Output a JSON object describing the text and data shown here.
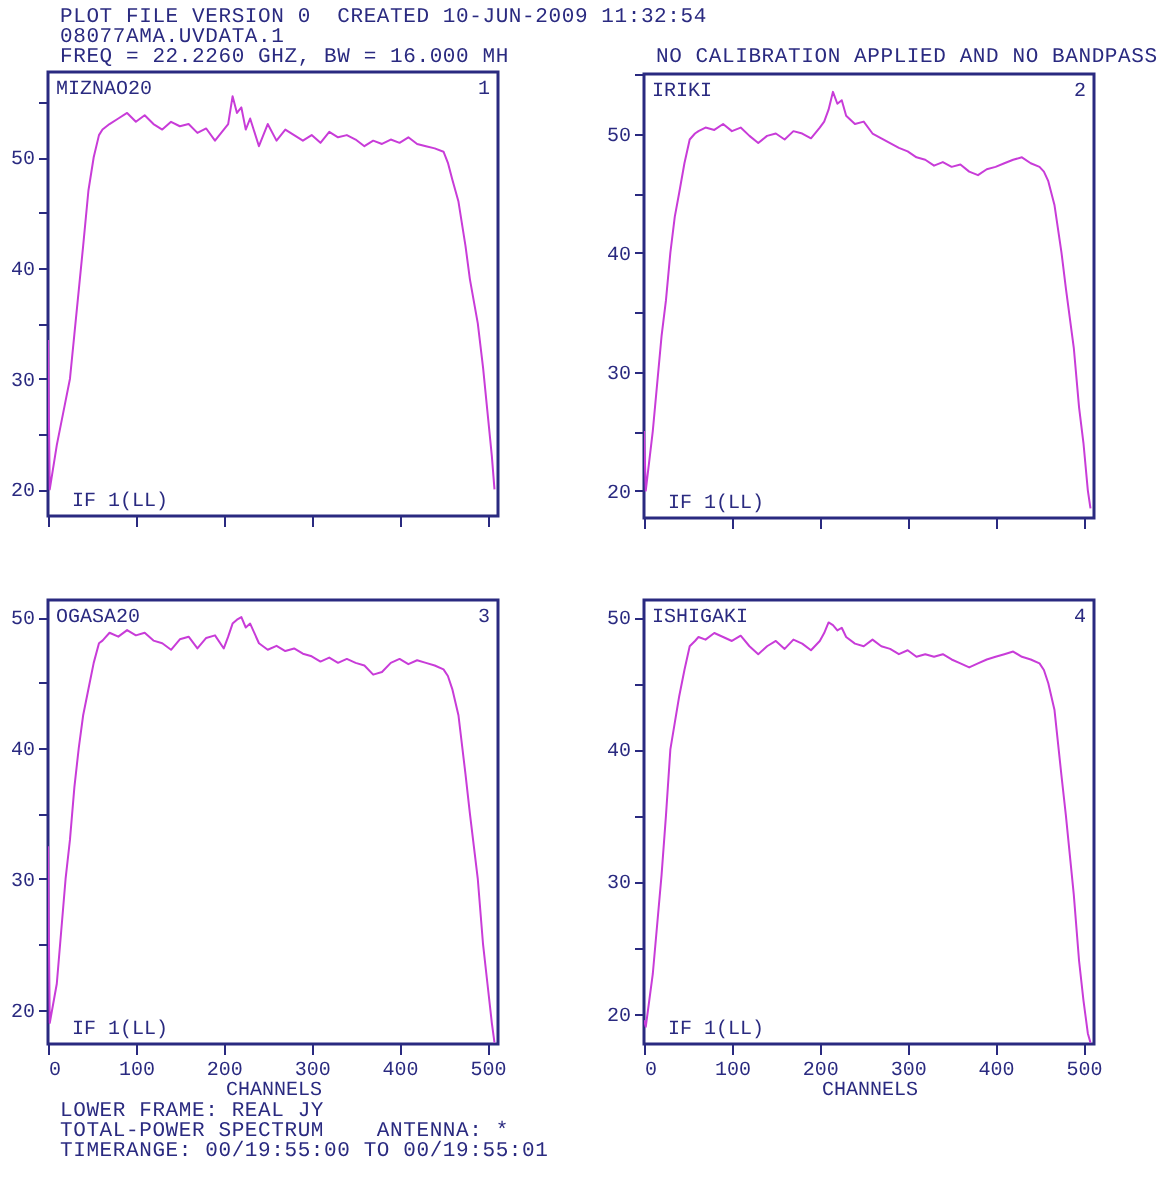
{
  "chart_data": [
    {
      "type": "line",
      "title": "PLOT FILE VERSION 0  CREATED 10-JUN-2009 11:32:54",
      "subtitle": "08077AMA.UVDATA.1",
      "annotations": [
        "MIZNAO20",
        "1",
        "IF 1(LL)",
        "FREQ = 22.2260 GHZ, BW = 16.000 MH"
      ],
      "color": "#c83cd8",
      "xlim": [
        0,
        512
      ],
      "xticks": [
        0,
        100,
        200,
        300,
        400,
        500
      ],
      "ylim": [
        17.6,
        57.7
      ],
      "yticks": [
        20,
        {
          "value": 25,
          "label": null
        },
        30,
        {
          "value": 35,
          "label": null
        },
        40,
        {
          "value": 45,
          "label": null
        },
        50,
        {
          "value": 55,
          "label": null
        }
      ],
      "tick_labels": "y",
      "x": [
        0,
        2,
        10,
        20,
        25,
        30,
        35,
        40,
        46,
        52,
        58,
        62,
        70,
        80,
        90,
        100,
        110,
        120,
        130,
        140,
        150,
        160,
        170,
        180,
        190,
        200,
        205,
        210,
        215,
        220,
        225,
        230,
        240,
        250,
        260,
        270,
        280,
        290,
        300,
        310,
        320,
        330,
        340,
        350,
        360,
        370,
        380,
        390,
        400,
        410,
        420,
        430,
        440,
        450,
        455,
        460,
        467,
        475,
        480,
        489,
        495,
        500,
        505,
        508
      ],
      "values": [
        33.5,
        20,
        24,
        28,
        30,
        34,
        38,
        42,
        47,
        50,
        52,
        52.5,
        53,
        53.5,
        54,
        53.2,
        53.8,
        53,
        52.5,
        53.2,
        52.8,
        53,
        52.2,
        52.6,
        51.5,
        52.5,
        53,
        55.5,
        54,
        54.5,
        52.5,
        53.5,
        51,
        53,
        51.5,
        52.5,
        52,
        51.5,
        52,
        51.3,
        52.3,
        51.8,
        52,
        51.6,
        51,
        51.5,
        51.2,
        51.6,
        51.3,
        51.8,
        51.2,
        51,
        50.8,
        50.5,
        49.5,
        48,
        46,
        42,
        39,
        35,
        31,
        27,
        23,
        20
      ]
    },
    {
      "type": "line",
      "annotations": [
        "IRIKI",
        "2",
        "IF 1(LL)",
        "NO CALIBRATION APPLIED AND NO BANDPASS"
      ],
      "color": "#c83cd8",
      "xlim": [
        0,
        512
      ],
      "xticks": [
        0,
        100,
        200,
        300,
        400,
        500
      ],
      "ylim": [
        17.7,
        55
      ],
      "yticks": [
        20,
        {
          "value": 25,
          "label": null
        },
        30,
        {
          "value": 35,
          "label": null
        },
        40,
        {
          "value": 45,
          "label": null
        },
        50,
        {
          "value": 55,
          "label": null
        }
      ],
      "tick_labels": "y",
      "x": [
        0,
        2,
        10,
        20,
        25,
        30,
        35,
        40,
        46,
        52,
        58,
        62,
        70,
        80,
        90,
        100,
        110,
        120,
        130,
        140,
        150,
        160,
        170,
        180,
        190,
        200,
        205,
        210,
        215,
        220,
        225,
        230,
        240,
        250,
        260,
        270,
        280,
        290,
        300,
        310,
        320,
        330,
        340,
        350,
        360,
        370,
        380,
        390,
        400,
        410,
        420,
        430,
        440,
        450,
        455,
        460,
        467,
        475,
        480,
        489,
        495,
        500,
        505,
        508
      ],
      "values": [
        25,
        20,
        25,
        33,
        36,
        40,
        43,
        45,
        47.5,
        49.5,
        50,
        50.2,
        50.5,
        50.3,
        50.8,
        50.2,
        50.5,
        49.8,
        49.2,
        49.8,
        50,
        49.5,
        50.2,
        50,
        49.6,
        50.5,
        51,
        52,
        53.5,
        52.5,
        52.8,
        51.5,
        50.8,
        51,
        50,
        49.6,
        49.2,
        48.8,
        48.5,
        48,
        47.8,
        47.3,
        47.6,
        47.2,
        47.4,
        46.8,
        46.5,
        47,
        47.2,
        47.5,
        47.8,
        48,
        47.5,
        47.2,
        46.8,
        46,
        44,
        40,
        37,
        32,
        27,
        24,
        20,
        18.5
      ]
    },
    {
      "type": "line",
      "annotations": [
        "OGASA20",
        "3",
        "IF 1(LL)",
        "LOWER FRAME: REAL JY",
        "TOTAL-POWER SPECTRUM    ANTENNA: *",
        "TIMERANGE: 00/19:55:00 TO 00/19:55:01"
      ],
      "xlabel": "CHANNELS",
      "color": "#c83cd8",
      "xlim": [
        0,
        512
      ],
      "xticks": [
        0,
        100,
        200,
        300,
        400,
        500
      ],
      "ylim": [
        17.4,
        51.3
      ],
      "yticks": [
        20,
        {
          "value": 25,
          "label": null
        },
        30,
        {
          "value": 35,
          "label": null
        },
        40,
        {
          "value": 45,
          "label": null
        },
        50
      ],
      "x": [
        0,
        2,
        10,
        20,
        25,
        30,
        35,
        40,
        46,
        52,
        58,
        62,
        70,
        80,
        90,
        100,
        110,
        120,
        130,
        140,
        150,
        160,
        170,
        180,
        190,
        200,
        205,
        210,
        215,
        220,
        225,
        230,
        240,
        250,
        260,
        270,
        280,
        290,
        300,
        310,
        320,
        330,
        340,
        350,
        360,
        370,
        380,
        390,
        400,
        410,
        420,
        430,
        440,
        450,
        455,
        460,
        467,
        475,
        480,
        489,
        495,
        500,
        505,
        508
      ],
      "values": [
        32.5,
        19,
        22,
        30,
        33,
        37,
        40,
        42.5,
        44.5,
        46.5,
        48,
        48.2,
        48.8,
        48.5,
        49,
        48.6,
        48.8,
        48.2,
        48,
        47.5,
        48.3,
        48.5,
        47.6,
        48.4,
        48.6,
        47.6,
        48.5,
        49.5,
        49.8,
        50,
        49.2,
        49.5,
        48,
        47.5,
        47.8,
        47.4,
        47.6,
        47.2,
        47,
        46.6,
        46.9,
        46.5,
        46.8,
        46.5,
        46.3,
        45.6,
        45.8,
        46.5,
        46.8,
        46.4,
        46.7,
        46.5,
        46.3,
        46,
        45.5,
        44.5,
        42.5,
        38,
        35,
        30,
        25,
        22,
        19,
        17.5
      ]
    },
    {
      "type": "line",
      "annotations": [
        "ISHIGAKI",
        "4",
        "IF 1(LL)"
      ],
      "xlabel": "CHANNELS",
      "color": "#c83cd8",
      "xlim": [
        0,
        512
      ],
      "xticks": [
        0,
        100,
        200,
        300,
        400,
        500
      ],
      "ylim": [
        17.7,
        51.3
      ],
      "yticks": [
        20,
        {
          "value": 25,
          "label": null
        },
        30,
        {
          "value": 35,
          "label": null
        },
        40,
        {
          "value": 45,
          "label": null
        },
        50
      ],
      "x": [
        0,
        2,
        10,
        20,
        25,
        30,
        35,
        40,
        46,
        52,
        58,
        62,
        70,
        80,
        90,
        100,
        110,
        120,
        130,
        140,
        150,
        160,
        170,
        180,
        190,
        200,
        205,
        210,
        215,
        220,
        225,
        230,
        240,
        250,
        260,
        270,
        280,
        290,
        300,
        310,
        320,
        330,
        340,
        350,
        360,
        370,
        380,
        390,
        400,
        410,
        420,
        430,
        440,
        450,
        455,
        460,
        467,
        475,
        480,
        489,
        495,
        500,
        505,
        508
      ],
      "values": [
        19.5,
        19,
        23,
        30.5,
        35,
        40,
        42,
        44,
        46,
        47.8,
        48.2,
        48.5,
        48.3,
        48.8,
        48.5,
        48.2,
        48.6,
        47.8,
        47.2,
        47.8,
        48.2,
        47.6,
        48.3,
        48,
        47.5,
        48.2,
        48.8,
        49.6,
        49.4,
        49,
        49.2,
        48.5,
        48,
        47.8,
        48.3,
        47.8,
        47.6,
        47.2,
        47.5,
        47,
        47.2,
        47,
        47.2,
        46.8,
        46.5,
        46.2,
        46.5,
        46.8,
        47,
        47.2,
        47.4,
        47,
        46.8,
        46.5,
        46,
        45,
        43,
        38,
        35,
        29,
        24,
        21,
        18.5,
        17.8
      ]
    }
  ]
}
